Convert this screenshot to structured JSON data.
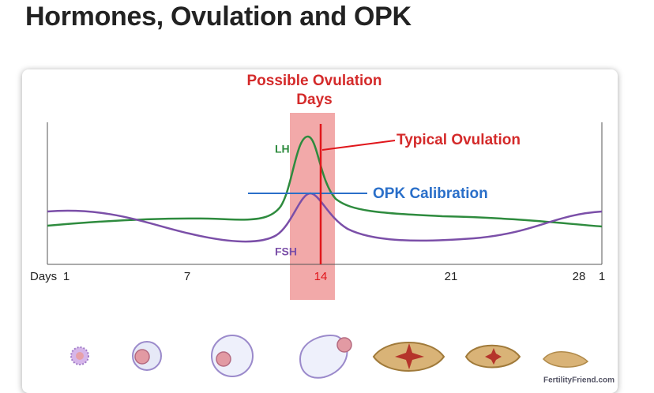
{
  "header": {
    "title": "Hormones, Ovulation and OPK"
  },
  "figure": {
    "window_title": [
      "Possible Ovulation",
      "Days"
    ],
    "typical_ovulation": "Typical Ovulation",
    "opk_calibration": "OPK Calibration",
    "lh_label": "LH",
    "fsh_label": "FSH",
    "axis_label": "Days",
    "day_labels": [
      "1",
      "7",
      "14",
      "21",
      "28",
      "1"
    ],
    "credit": "FertilityFriend.com"
  }
}
